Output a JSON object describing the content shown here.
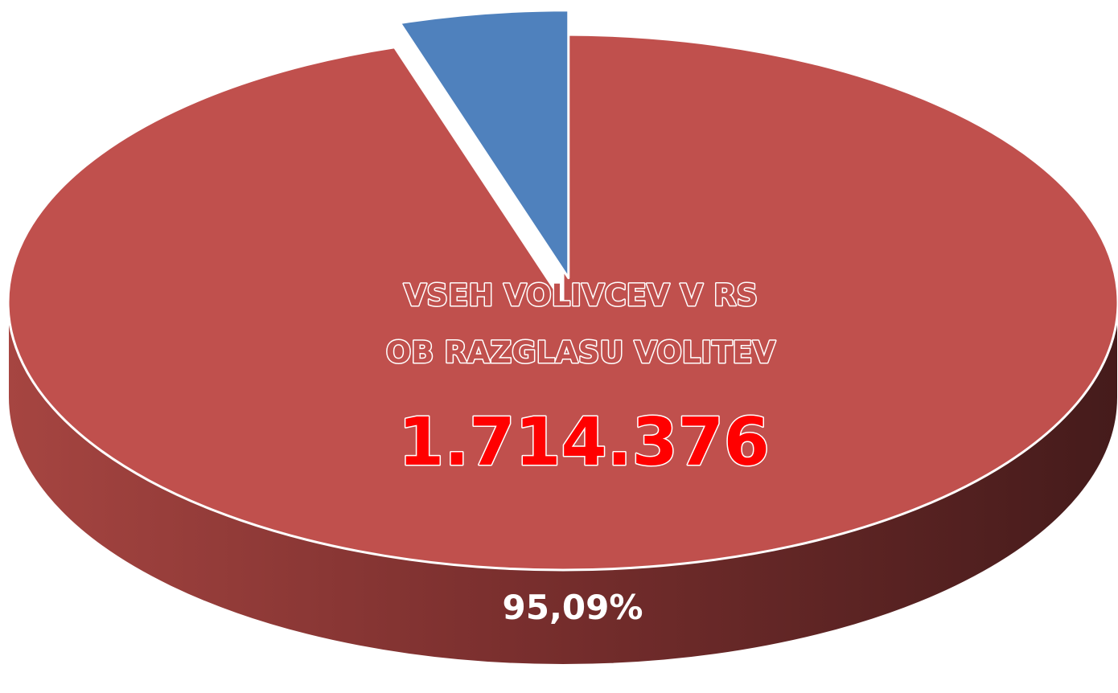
{
  "chart_data": {
    "type": "pie",
    "style": "3d-exploded",
    "slices": [
      {
        "label": "VSEH VOLIVCEV V RS OB RAZGLASU VOLITEV",
        "value": 95.09,
        "color": "#c0504d",
        "side_color_light": "#a04441",
        "side_color_dark": "#4a1e1e"
      },
      {
        "label": "",
        "value": 4.91,
        "color": "#4f81bd",
        "side_color_light": "#3f6696",
        "side_color_dark": "#2f4d70"
      }
    ],
    "annotations": {
      "title_line1": "VSEH VOLIVCEV V RS",
      "title_line2": "OB RAZGLASU VOLITEV",
      "count": "1.714.376",
      "percent": "95,09%"
    }
  }
}
